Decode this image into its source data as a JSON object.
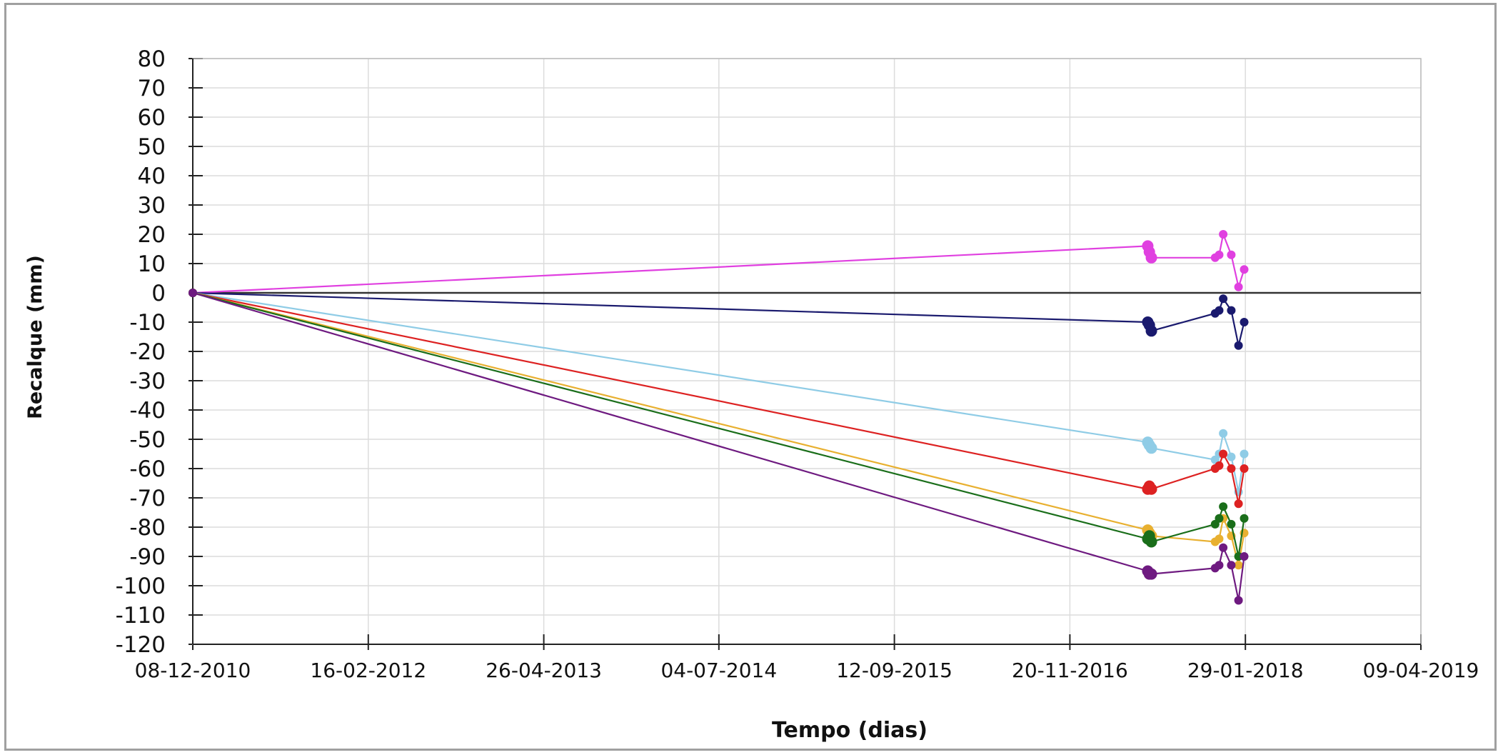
{
  "chart_data": {
    "type": "line",
    "title": "",
    "xlabel": "Tempo (dias)",
    "ylabel": "Recalque (mm)",
    "ylim": [
      -120,
      80
    ],
    "xlim": [
      "2010-12-08",
      "2019-04-09"
    ],
    "grid": true,
    "legend": "none",
    "y_ticks": [
      "80",
      "70",
      "60",
      "50",
      "40",
      "30",
      "20",
      "10",
      "0",
      "-10",
      "-20",
      "-30",
      "-40",
      "-50",
      "-60",
      "-70",
      "-80",
      "-90",
      "-100",
      "-110",
      "-120"
    ],
    "x_ticks": [
      {
        "date": "2010-12-08",
        "label": "08-12-2010"
      },
      {
        "date": "2012-02-16",
        "label": "16-02-2012"
      },
      {
        "date": "2013-04-26",
        "label": "26-04-2013"
      },
      {
        "date": "2014-07-04",
        "label": "04-07-2014"
      },
      {
        "date": "2015-09-12",
        "label": "12-09-2015"
      },
      {
        "date": "2016-11-20",
        "label": "20-11-2016"
      },
      {
        "date": "2018-01-29",
        "label": "29-01-2018"
      },
      {
        "date": "2019-04-09",
        "label": "09-04-2019"
      }
    ],
    "x": [
      "2010-12-08",
      "2017-06-01",
      "2017-06-05",
      "2017-06-10",
      "2017-11-15",
      "2017-11-25",
      "2017-12-05",
      "2017-12-25",
      "2018-01-12",
      "2018-01-26"
    ],
    "series": [
      {
        "color": "#e040e0",
        "values": [
          0,
          16,
          14,
          12,
          12,
          13,
          20,
          13,
          2,
          8
        ]
      },
      {
        "color": "#1a1a6e",
        "values": [
          0,
          -10,
          -11,
          -13,
          -7,
          -6,
          -2,
          -6,
          -18,
          -10
        ]
      },
      {
        "color": "#8fcce6",
        "values": [
          0,
          -51,
          -52,
          -53,
          -57,
          -55,
          -48,
          -56,
          -68,
          -55
        ]
      },
      {
        "color": "#dd2222",
        "values": [
          0,
          -67,
          -66,
          -67,
          -60,
          -59,
          -55,
          -60,
          -72,
          -60
        ]
      },
      {
        "color": "#e8b030",
        "values": [
          0,
          -81,
          -82,
          -83,
          -85,
          -84,
          -77,
          -83,
          -93,
          -82
        ]
      },
      {
        "color": "#1a6e1a",
        "values": [
          0,
          -84,
          -83,
          -85,
          -79,
          -77,
          -73,
          -79,
          -90,
          -77
        ]
      },
      {
        "color": "#6e1a80",
        "values": [
          0,
          -95,
          -96,
          -96,
          -94,
          -93,
          -87,
          -93,
          -105,
          -90
        ]
      }
    ]
  }
}
